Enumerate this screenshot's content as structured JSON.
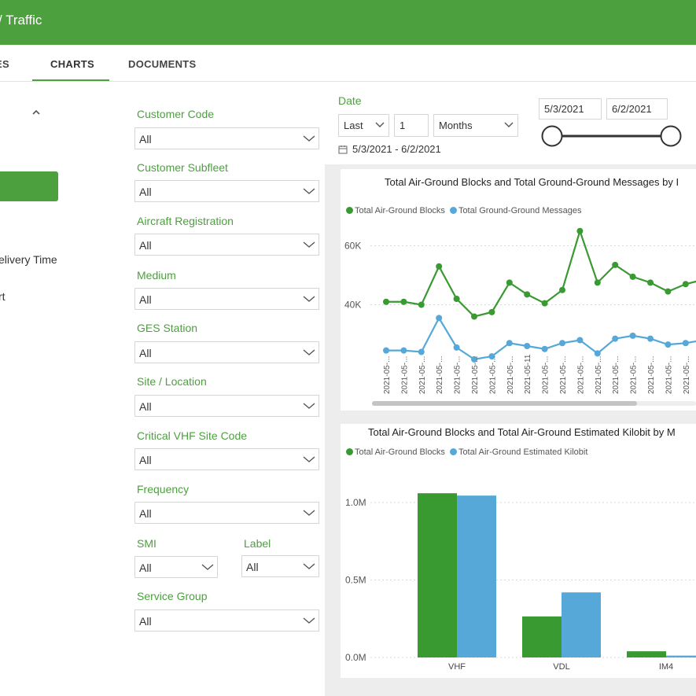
{
  "header": {
    "title": "/ Traffic"
  },
  "tabs": [
    {
      "label": "ES"
    },
    {
      "label": "CHARTS"
    },
    {
      "label": "DOCUMENTS"
    }
  ],
  "left_menu": {
    "items": [
      "elivery Time",
      "rt"
    ]
  },
  "filters": {
    "customer_code": {
      "label": "Customer Code",
      "value": "All"
    },
    "customer_subfleet": {
      "label": "Customer Subfleet",
      "value": "All"
    },
    "aircraft_registration": {
      "label": "Aircraft Registration",
      "value": "All"
    },
    "medium": {
      "label": "Medium",
      "value": "All"
    },
    "ges_station": {
      "label": "GES Station",
      "value": "All"
    },
    "site_location": {
      "label": "Site / Location",
      "value": "All"
    },
    "critical_vhf": {
      "label": "Critical VHF Site Code",
      "value": "All"
    },
    "frequency": {
      "label": "Frequency",
      "value": "All"
    },
    "smi": {
      "label": "SMI",
      "value": "All"
    },
    "label_filter": {
      "label": "Label",
      "value": "All"
    },
    "service_group": {
      "label": "Service Group",
      "value": "All"
    }
  },
  "date_filter": {
    "label": "Date",
    "mode": "Last",
    "count": "1",
    "unit": "Months",
    "range_text": "5/3/2021 - 6/2/2021",
    "start": "5/3/2021",
    "end": "6/2/2021"
  },
  "colors": {
    "brand": "#4ca03e",
    "series_green": "#3a9a32",
    "series_blue": "#56a8d8"
  },
  "chart_data": [
    {
      "type": "line",
      "title": "Total Air-Ground Blocks and Total Ground-Ground Messages by I",
      "categories": [
        "2021-05-...",
        "2021-05-...",
        "2021-05-...",
        "2021-05-...",
        "2021-05-...",
        "2021-05-...",
        "2021-05-...",
        "2021-05-...",
        "2021-05-11",
        "2021-05-...",
        "2021-05-...",
        "2021-05-...",
        "2021-05-...",
        "2021-05-...",
        "2021-05-...",
        "2021-05-...",
        "2021-05-...",
        "2021-05-...",
        "2021-05-..."
      ],
      "series": [
        {
          "name": "Total Air-Ground Blocks",
          "values": [
            41000,
            41000,
            40000,
            53000,
            42000,
            36000,
            37500,
            47500,
            43500,
            40500,
            45000,
            65000,
            47500,
            53500,
            49500,
            47500,
            44500,
            47000,
            48500
          ]
        },
        {
          "name": "Total Ground-Ground Messages",
          "values": [
            24500,
            24500,
            24000,
            35500,
            25500,
            21500,
            22500,
            27000,
            26000,
            25000,
            27000,
            28000,
            23500,
            28500,
            29500,
            28500,
            26500,
            27000,
            28000
          ]
        }
      ],
      "yticks": [
        "40K",
        "60K"
      ],
      "ylim": [
        22000,
        70000
      ],
      "legend": "top-left"
    },
    {
      "type": "bar",
      "title": "Total Air-Ground Blocks and Total Air-Ground Estimated Kilobit by M",
      "categories": [
        "VHF",
        "VDL",
        "IM4"
      ],
      "series": [
        {
          "name": "Total Air-Ground Blocks",
          "values": [
            1060000,
            265000,
            40000
          ]
        },
        {
          "name": "Total Air-Ground Estimated Kilobit",
          "values": [
            1045000,
            420000,
            12000
          ]
        }
      ],
      "yticks": [
        "0.0M",
        "0.5M",
        "1.0M"
      ],
      "ylim": [
        0,
        1000000
      ],
      "legend": "top-left"
    }
  ]
}
